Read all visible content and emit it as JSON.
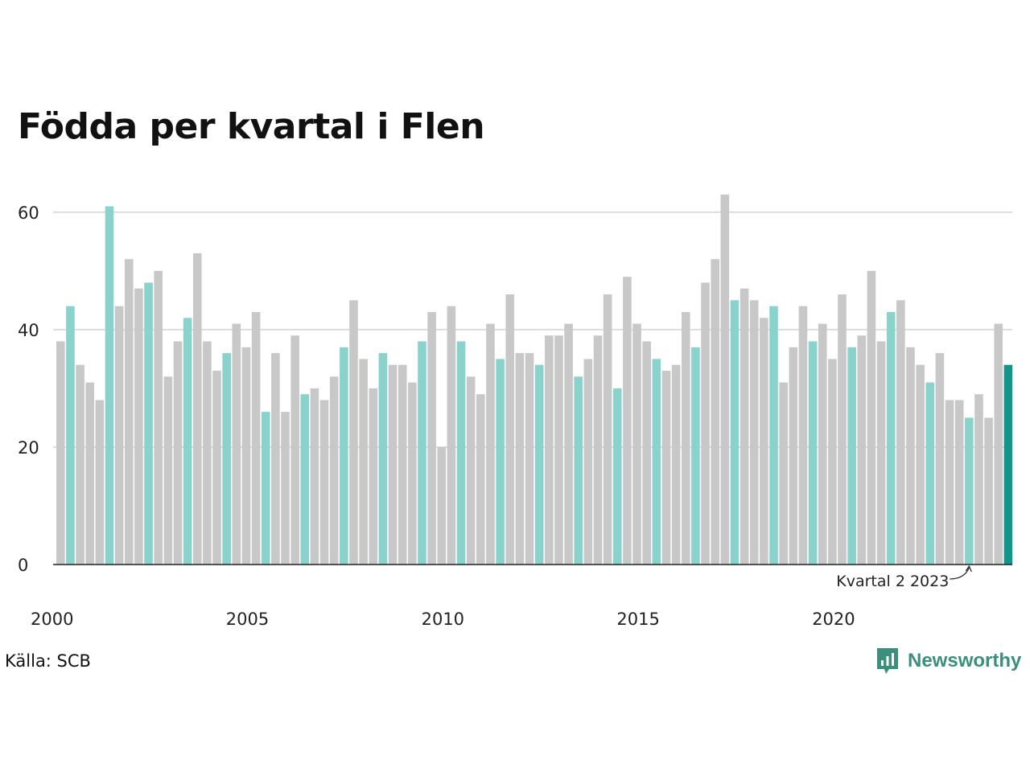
{
  "title": "Födda per kvartal i Flen",
  "source": "Källa: SCB",
  "brand": "Newsworthy",
  "colors": {
    "other": "#c8c8c8",
    "quarter2": "#8ad3cd",
    "latest": "#14958a",
    "grid": "#dddddd",
    "axis": "#222222",
    "brand": "#3b8f7d"
  },
  "chart_data": {
    "type": "bar",
    "title": "Födda per kvartal i Flen",
    "xlabel": "",
    "ylabel": "",
    "ylim": [
      0,
      66
    ],
    "yticks": [
      0,
      20,
      40,
      60
    ],
    "xtick_labels": [
      "2000",
      "2005",
      "2010",
      "2015",
      "2020"
    ],
    "grid": true,
    "start_year": 2000,
    "highlight_quarter": 2,
    "annotation": {
      "text": "Kvartal 2 2023",
      "year": 2023,
      "quarter": 2
    },
    "values": [
      38,
      44,
      34,
      31,
      28,
      61,
      44,
      52,
      47,
      48,
      50,
      32,
      38,
      42,
      53,
      38,
      33,
      36,
      41,
      37,
      43,
      26,
      36,
      26,
      39,
      29,
      30,
      28,
      32,
      37,
      45,
      35,
      30,
      36,
      34,
      34,
      31,
      38,
      43,
      20,
      44,
      38,
      32,
      29,
      41,
      35,
      46,
      36,
      36,
      34,
      39,
      39,
      41,
      32,
      35,
      39,
      46,
      30,
      49,
      41,
      38,
      35,
      33,
      34,
      43,
      37,
      48,
      52,
      63,
      45,
      47,
      45,
      42,
      44,
      31,
      37,
      44,
      38,
      41,
      35,
      46,
      37,
      39,
      50,
      38,
      43,
      45,
      37,
      34,
      31,
      36,
      28,
      28,
      25,
      29,
      25,
      41,
      34
    ]
  }
}
